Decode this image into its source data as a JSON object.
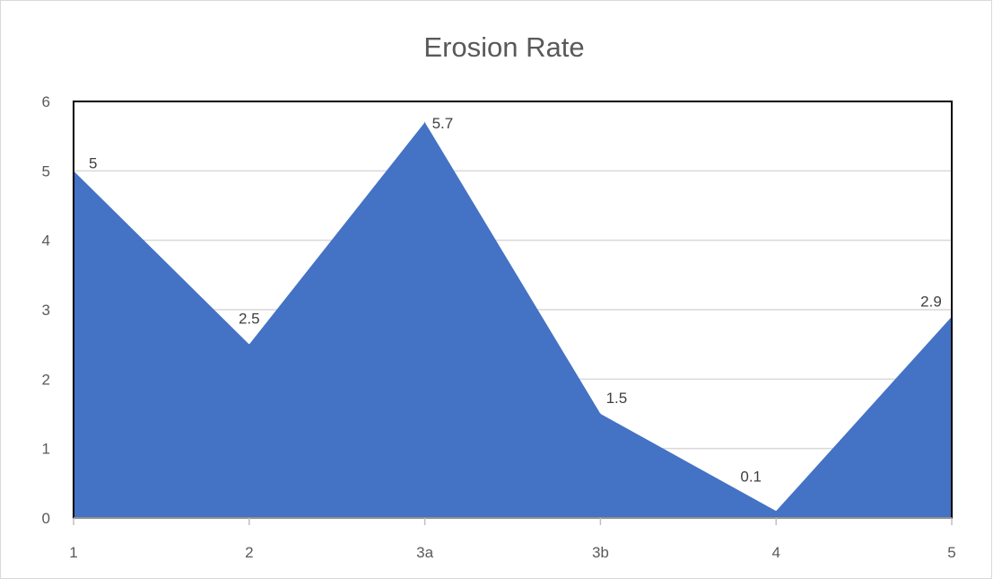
{
  "chart_data": {
    "type": "area",
    "title": "Erosion Rate",
    "categories": [
      "1",
      "2",
      "3a",
      "3b",
      "4",
      "5"
    ],
    "series": [
      {
        "values": [
          5,
          2.5,
          5.7,
          1.5,
          0.1,
          2.9
        ]
      }
    ],
    "data_labels": [
      "5",
      "2.5",
      "5.7",
      "1.5",
      "0.1",
      "2.9"
    ],
    "y_ticks": [
      "0",
      "1",
      "2",
      "3",
      "4",
      "5",
      "6"
    ],
    "ylim": [
      0,
      6
    ],
    "grid": true,
    "legend": false,
    "colors": {
      "area_fill": "#4472C4",
      "gridline": "#D9D9D9",
      "axis_line": "#BFBFBF",
      "plot_border": "#000000",
      "chart_border": "#D9D9D9"
    }
  }
}
